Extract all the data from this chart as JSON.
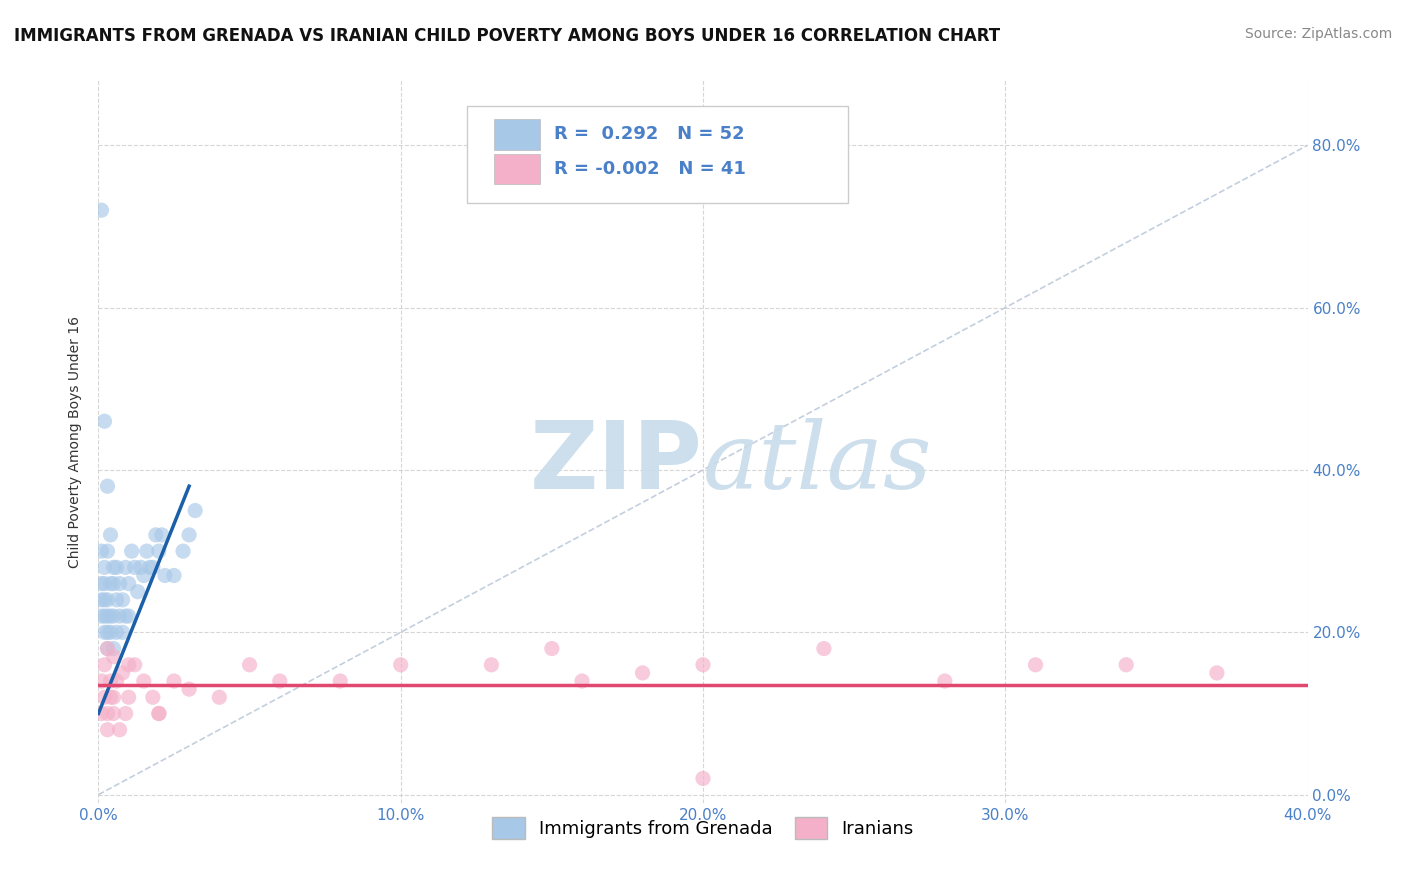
{
  "title": "IMMIGRANTS FROM GRENADA VS IRANIAN CHILD POVERTY AMONG BOYS UNDER 16 CORRELATION CHART",
  "source": "Source: ZipAtlas.com",
  "ylabel": "Child Poverty Among Boys Under 16",
  "xlim": [
    0.0,
    0.4
  ],
  "ylim": [
    -0.01,
    0.88
  ],
  "xticks": [
    0.0,
    0.1,
    0.2,
    0.3,
    0.4
  ],
  "yticks": [
    0.0,
    0.2,
    0.4,
    0.6,
    0.8
  ],
  "xtick_labels": [
    "0.0%",
    "10.0%",
    "20.0%",
    "30.0%",
    "40.0%"
  ],
  "ytick_labels_right": [
    "0.0%",
    "20.0%",
    "40.0%",
    "60.0%",
    "80.0%"
  ],
  "legend_labels": [
    "Immigrants from Grenada",
    "Iranians"
  ],
  "blue_R": 0.292,
  "blue_N": 52,
  "pink_R": -0.002,
  "pink_N": 41,
  "blue_color": "#a8c8e8",
  "pink_color": "#f4b0c8",
  "blue_trend_color": "#1a5fa8",
  "pink_trend_color": "#e04870",
  "dashed_line_color": "#aabbd0",
  "watermark_color": "#c8dcea",
  "background_color": "#ffffff",
  "grid_color": "#cccccc",
  "tick_color": "#4a80c8",
  "title_fontsize": 12,
  "axis_label_fontsize": 10,
  "tick_fontsize": 11,
  "legend_fontsize": 13,
  "source_fontsize": 10,
  "blue_scatter_x": [
    0.001,
    0.001,
    0.001,
    0.001,
    0.002,
    0.002,
    0.002,
    0.002,
    0.002,
    0.003,
    0.003,
    0.003,
    0.003,
    0.003,
    0.004,
    0.004,
    0.004,
    0.004,
    0.005,
    0.005,
    0.005,
    0.006,
    0.006,
    0.006,
    0.007,
    0.007,
    0.008,
    0.008,
    0.009,
    0.009,
    0.01,
    0.01,
    0.011,
    0.012,
    0.013,
    0.014,
    0.015,
    0.016,
    0.017,
    0.018,
    0.019,
    0.02,
    0.021,
    0.022,
    0.025,
    0.028,
    0.03,
    0.032,
    0.001,
    0.002,
    0.003,
    0.005
  ],
  "blue_scatter_y": [
    0.22,
    0.24,
    0.26,
    0.3,
    0.2,
    0.22,
    0.24,
    0.26,
    0.28,
    0.18,
    0.2,
    0.22,
    0.24,
    0.3,
    0.2,
    0.22,
    0.26,
    0.32,
    0.18,
    0.22,
    0.26,
    0.2,
    0.24,
    0.28,
    0.22,
    0.26,
    0.2,
    0.24,
    0.22,
    0.28,
    0.22,
    0.26,
    0.3,
    0.28,
    0.25,
    0.28,
    0.27,
    0.3,
    0.28,
    0.28,
    0.32,
    0.3,
    0.32,
    0.27,
    0.27,
    0.3,
    0.32,
    0.35,
    0.72,
    0.46,
    0.38,
    0.28
  ],
  "pink_scatter_x": [
    0.001,
    0.001,
    0.002,
    0.002,
    0.003,
    0.003,
    0.004,
    0.004,
    0.005,
    0.005,
    0.006,
    0.007,
    0.008,
    0.009,
    0.01,
    0.012,
    0.015,
    0.018,
    0.02,
    0.025,
    0.03,
    0.04,
    0.05,
    0.06,
    0.08,
    0.1,
    0.13,
    0.15,
    0.16,
    0.18,
    0.2,
    0.24,
    0.28,
    0.31,
    0.34,
    0.37,
    0.003,
    0.005,
    0.01,
    0.02,
    0.2
  ],
  "pink_scatter_y": [
    0.14,
    0.1,
    0.12,
    0.16,
    0.1,
    0.08,
    0.12,
    0.14,
    0.1,
    0.12,
    0.14,
    0.08,
    0.15,
    0.1,
    0.12,
    0.16,
    0.14,
    0.12,
    0.1,
    0.14,
    0.13,
    0.12,
    0.16,
    0.14,
    0.14,
    0.16,
    0.16,
    0.18,
    0.14,
    0.15,
    0.16,
    0.18,
    0.14,
    0.16,
    0.16,
    0.15,
    0.18,
    0.17,
    0.16,
    0.1,
    0.02
  ],
  "pink_trend_y": 0.135,
  "blue_trend_x0": 0.0,
  "blue_trend_y0": 0.1,
  "blue_trend_x1": 0.03,
  "blue_trend_y1": 0.38
}
